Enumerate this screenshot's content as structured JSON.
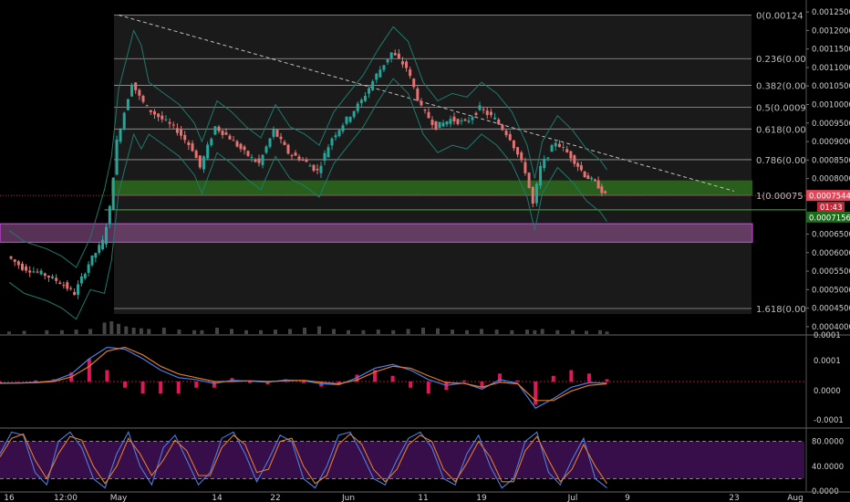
{
  "chart_data": [
    {
      "panel": "price",
      "type": "candlestick",
      "x_dates": [
        "Apr 16",
        "Apr 23 12:00",
        "May 1",
        "May 14",
        "May 22",
        "Jun 1",
        "Jun 11",
        "Jun 19",
        "Jul 1",
        "Jul 9",
        "Jul 23",
        "Aug 1"
      ],
      "x_tick_labels": [
        "16",
        "12:00",
        "May",
        "14",
        "22",
        "Jun",
        "11",
        "19",
        "Jul",
        "9",
        "23",
        "Aug"
      ],
      "y_scale": "linear",
      "ylim": [
        0.00038,
        0.00127
      ],
      "y_tick_labels": [
        "0.0012500",
        "0.0012000",
        "0.0011500",
        "0.0011000",
        "0.0010500",
        "0.0010000",
        "0.0009500",
        "0.0009000",
        "0.0008500",
        "0.0008000",
        "0.0007500",
        "0.0007000",
        "0.0006500",
        "0.0006000",
        "0.0005500",
        "0.0005000",
        "0.0004500",
        "0.0004000"
      ],
      "fib_levels": [
        {
          "label": "0(0.00124",
          "value": 0.001242
        },
        {
          "label": "0.236(0.00",
          "value": 0.001124
        },
        {
          "label": "0.382(0.00",
          "value": 0.001052
        },
        {
          "label": "0.5(0.0009",
          "value": 0.000993
        },
        {
          "label": "0.618(0.00",
          "value": 0.000934
        },
        {
          "label": "0.786(0.00",
          "value": 0.000851
        },
        {
          "label": "1(0.00075",
          "value": 0.000755
        },
        {
          "label": "1.618(0.00",
          "value": 0.000449
        }
      ],
      "last_price": {
        "label": "0.0007544",
        "value": 0.0007544,
        "color": "#e0485a"
      },
      "countdown": "01:43",
      "support_line": {
        "label": "0.0007156",
        "value": 0.0007156,
        "color": "#1f8f1f"
      },
      "green_zone": [
        0.000755,
        0.000795
      ],
      "purple_zone": [
        0.000628,
        0.000678
      ],
      "trend_line": {
        "from": [
          "May 1",
          0.001242
        ],
        "to": [
          "Jul 23",
          0.000766
        ]
      },
      "price_path": [
        [
          "Apr 16",
          0.00059
        ],
        [
          "Apr 18",
          0.00056
        ],
        [
          "Apr 21",
          0.00054
        ],
        [
          "Apr 23",
          0.00052
        ],
        [
          "Apr 25",
          0.00049
        ],
        [
          "Apr 27",
          0.00057
        ],
        [
          "Apr 29",
          0.00063
        ],
        [
          "Apr 30",
          0.00072
        ],
        [
          "May 1",
          0.0009
        ],
        [
          "May 2",
          0.00098
        ],
        [
          "May 3",
          0.00106
        ],
        [
          "May 4",
          0.00102
        ],
        [
          "May 5",
          0.00099
        ],
        [
          "May 7",
          0.00096
        ],
        [
          "May 9",
          0.00093
        ],
        [
          "May 11",
          0.00088
        ],
        [
          "May 12",
          0.00083
        ],
        [
          "May 14",
          0.00094
        ],
        [
          "May 16",
          0.00091
        ],
        [
          "May 18",
          0.00087
        ],
        [
          "May 20",
          0.00084
        ],
        [
          "May 22",
          0.00093
        ],
        [
          "May 24",
          0.00087
        ],
        [
          "May 26",
          0.00085
        ],
        [
          "May 28",
          0.00082
        ],
        [
          "May 30",
          0.00091
        ],
        [
          "Jun 1",
          0.00096
        ],
        [
          "Jun 3",
          0.00101
        ],
        [
          "Jun 5",
          0.00108
        ],
        [
          "Jun 7",
          0.00114
        ],
        [
          "Jun 9",
          0.0011
        ],
        [
          "Jun 11",
          0.00099
        ],
        [
          "Jun 13",
          0.00094
        ],
        [
          "Jun 15",
          0.00096
        ],
        [
          "Jun 17",
          0.00095
        ],
        [
          "Jun 19",
          0.00099
        ],
        [
          "Jun 21",
          0.00096
        ],
        [
          "Jun 23",
          0.00091
        ],
        [
          "Jun 25",
          0.00082
        ],
        [
          "Jun 26",
          0.00073
        ],
        [
          "Jun 27",
          0.00083
        ],
        [
          "Jun 29",
          0.0009
        ],
        [
          "Jul 1",
          0.00086
        ],
        [
          "Jul 3",
          0.00081
        ],
        [
          "Jul 5",
          0.00078
        ],
        [
          "Jul 6",
          0.000754
        ]
      ],
      "volume_relative": [
        0.2,
        0.25,
        0.3,
        0.3,
        0.35,
        0.4,
        0.9,
        1.0,
        0.8,
        0.6,
        0.5,
        0.45,
        0.4,
        0.5,
        0.35,
        0.3,
        0.3,
        0.5,
        0.4,
        0.3,
        0.3,
        0.35,
        0.4,
        0.5,
        0.6,
        0.4,
        0.3,
        0.3,
        0.35,
        0.3,
        0.4,
        0.5,
        0.45,
        0.35,
        0.3,
        0.4,
        0.35,
        0.3,
        0.35,
        0.3,
        0.4,
        0.3,
        0.3,
        0.25,
        0.3,
        0.2
      ],
      "colors": {
        "up": "#26a69a",
        "down": "#e57373",
        "bollinger": "#1e7a6a",
        "fib_line": "#9e9e9e",
        "green_zone": "#2e6b1f",
        "purple_zone": "#a05a9c"
      }
    },
    {
      "panel": "macd",
      "type": "line",
      "ylim": [
        -0.00012,
        0.00012
      ],
      "y_tick_labels": [
        "0.0001",
        "0.0001",
        "0.0000",
        "-0.0001"
      ],
      "series": [
        {
          "color": "#4a7fe0",
          "values": [
            -5e-06,
            -4e-06,
            -2e-06,
            2e-06,
            2e-05,
            6e-05,
            9e-05,
            8.5e-05,
            6e-05,
            3e-05,
            1e-05,
            5e-06,
            -5e-06,
            3e-06,
            1e-06,
            -2e-06,
            4e-06,
            2e-06,
            -6e-06,
            -8e-06,
            1e-05,
            3.5e-05,
            4.5e-05,
            3e-05,
            5e-06,
            -1e-05,
            -4e-06,
            -2e-05,
            5e-06,
            -5e-06,
            -7e-05,
            -4.5e-05,
            -1.5e-05,
            -3e-06,
            -4e-06
          ]
        },
        {
          "color": "#e07b2a",
          "values": [
            -4e-06,
            -4e-06,
            -3e-06,
            0.0,
            1.2e-05,
            4e-05,
            8e-05,
            9e-05,
            7e-05,
            4e-05,
            2e-05,
            1e-05,
            0.0,
            0.0,
            2e-06,
            0.0,
            2e-06,
            3e-06,
            -2e-06,
            -6e-06,
            4e-06,
            2.5e-05,
            4e-05,
            3.5e-05,
            1.5e-05,
            -3e-06,
            -5e-06,
            -1.5e-05,
            -2e-06,
            -6e-06,
            -5e-05,
            -5e-05,
            -2.5e-05,
            -1e-05,
            -6e-06
          ]
        }
      ],
      "histogram_color": "#e0185a"
    },
    {
      "panel": "stochastic_rsi",
      "type": "line",
      "ylim": [
        0,
        100
      ],
      "bands": [
        20,
        80
      ],
      "y_tick_labels": [
        "80.0000",
        "40.0000",
        "0.0000"
      ],
      "series": [
        {
          "color": "#4a7fe0",
          "values": [
            60,
            95,
            90,
            30,
            10,
            80,
            95,
            70,
            20,
            5,
            60,
            95,
            40,
            10,
            70,
            90,
            50,
            10,
            30,
            85,
            95,
            60,
            15,
            50,
            90,
            80,
            20,
            5,
            40,
            90,
            95,
            60,
            20,
            10,
            50,
            85,
            95,
            70,
            20,
            10,
            60,
            90,
            40,
            5,
            20,
            80,
            95,
            30,
            10,
            50,
            85,
            20,
            5
          ]
        },
        {
          "color": "#e07b2a",
          "values": [
            55,
            85,
            92,
            50,
            20,
            60,
            88,
            82,
            40,
            12,
            40,
            85,
            60,
            25,
            50,
            82,
            65,
            25,
            25,
            70,
            90,
            75,
            30,
            35,
            80,
            85,
            40,
            12,
            25,
            75,
            92,
            75,
            35,
            15,
            35,
            75,
            90,
            80,
            35,
            15,
            45,
            80,
            55,
            15,
            15,
            65,
            88,
            50,
            15,
            35,
            75,
            40,
            12
          ]
        }
      ],
      "band_color": "#7b1fa2"
    }
  ]
}
